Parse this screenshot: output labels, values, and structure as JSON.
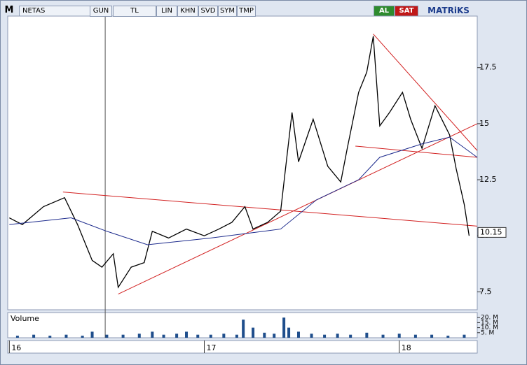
{
  "toolbar": {
    "logo": "M",
    "symbol": "NETAS",
    "buttons": [
      "GUN",
      "TL",
      "LIN",
      "KHN",
      "SVD",
      "SYM",
      "TMP"
    ],
    "buy": "AL",
    "sell": "SAT",
    "brand": "MATRiKS"
  },
  "chart_data": [
    {
      "type": "line",
      "ylim": [
        6.7,
        19.8
      ],
      "yticks": [
        7.5,
        10,
        12.5,
        15,
        17.5
      ],
      "xlim": [
        -0.1,
        28.8
      ],
      "xticks": [
        {
          "value": 0,
          "label": "16"
        },
        {
          "value": 12,
          "label": "17"
        },
        {
          "value": 24,
          "label": "18"
        }
      ],
      "last_price": 10.15,
      "cursor_x": 5.9,
      "series": [
        {
          "color": "#000000",
          "x": [
            0,
            0.8,
            2.1,
            3.4,
            4.2,
            5.1,
            5.7,
            6.4,
            6.7,
            7.5,
            8.3,
            8.8,
            9.8,
            10.9,
            12.0,
            12.9,
            13.7,
            14.5,
            15.0,
            15.9,
            16.7,
            17.0,
            17.4,
            17.8,
            18.7,
            19.6,
            20.4,
            20.8,
            21.5,
            22.0,
            22.4,
            22.8,
            23.4,
            24.2,
            24.7,
            25.4,
            26.2,
            27.1,
            27.5,
            28.0,
            28.3
          ],
          "values": [
            10.8,
            10.5,
            11.3,
            11.7,
            10.5,
            8.9,
            8.6,
            9.2,
            7.7,
            8.6,
            8.8,
            10.2,
            9.9,
            10.3,
            10.0,
            10.3,
            10.6,
            11.3,
            10.3,
            10.6,
            11.1,
            13.0,
            15.5,
            13.3,
            15.2,
            13.1,
            12.4,
            13.9,
            16.4,
            17.3,
            18.9,
            14.9,
            15.5,
            16.4,
            15.2,
            13.9,
            15.8,
            14.5,
            13.0,
            11.4,
            10.0
          ]
        },
        {
          "color": "#1c2a8c",
          "x": [
            0,
            3.8,
            6.0,
            8.5,
            12.4,
            16.7,
            18.9,
            21.5,
            22.8,
            25.4,
            27.1,
            28.8
          ],
          "values": [
            10.5,
            10.8,
            10.2,
            9.6,
            9.9,
            10.3,
            11.6,
            12.5,
            13.5,
            14.1,
            14.4,
            13.5
          ]
        }
      ],
      "trendlines": [
        {
          "color": "#d22020",
          "x": [
            3.3,
            28.8
          ],
          "y": [
            11.95,
            10.43
          ]
        },
        {
          "color": "#d22020",
          "x": [
            6.7,
            28.8
          ],
          "y": [
            7.4,
            15.0
          ]
        },
        {
          "color": "#d22020",
          "x": [
            22.4,
            28.8
          ],
          "y": [
            19.0,
            13.8
          ]
        },
        {
          "color": "#d22020",
          "x": [
            21.3,
            28.8
          ],
          "y": [
            14.0,
            13.5
          ]
        }
      ]
    },
    {
      "type": "bar",
      "title": "Volume",
      "color": "#1f4e8c",
      "ylim": [
        0,
        25
      ],
      "yticks": [
        {
          "value": 5,
          "label": "5. M"
        },
        {
          "value": 10,
          "label": "10. M"
        },
        {
          "value": 15,
          "label": "15. M"
        },
        {
          "value": 20,
          "label": "20. M"
        }
      ],
      "x": [
        0.5,
        1.5,
        2.5,
        3.5,
        4.5,
        5.1,
        6,
        7,
        8,
        8.8,
        9.5,
        10.3,
        10.9,
        11.6,
        12.4,
        13.2,
        14,
        14.4,
        15.0,
        15.7,
        16.3,
        16.9,
        17.2,
        17.8,
        18.6,
        19.4,
        20.2,
        21,
        22,
        23,
        24,
        25,
        26,
        27,
        28
      ],
      "values": [
        2,
        3,
        2,
        3,
        2,
        6,
        3,
        3,
        4,
        6,
        3,
        4,
        6,
        3,
        3,
        4,
        3,
        18,
        10,
        5,
        4,
        20,
        10,
        6,
        4,
        3,
        4,
        3,
        5,
        3,
        4,
        3,
        3,
        2,
        3
      ]
    }
  ]
}
